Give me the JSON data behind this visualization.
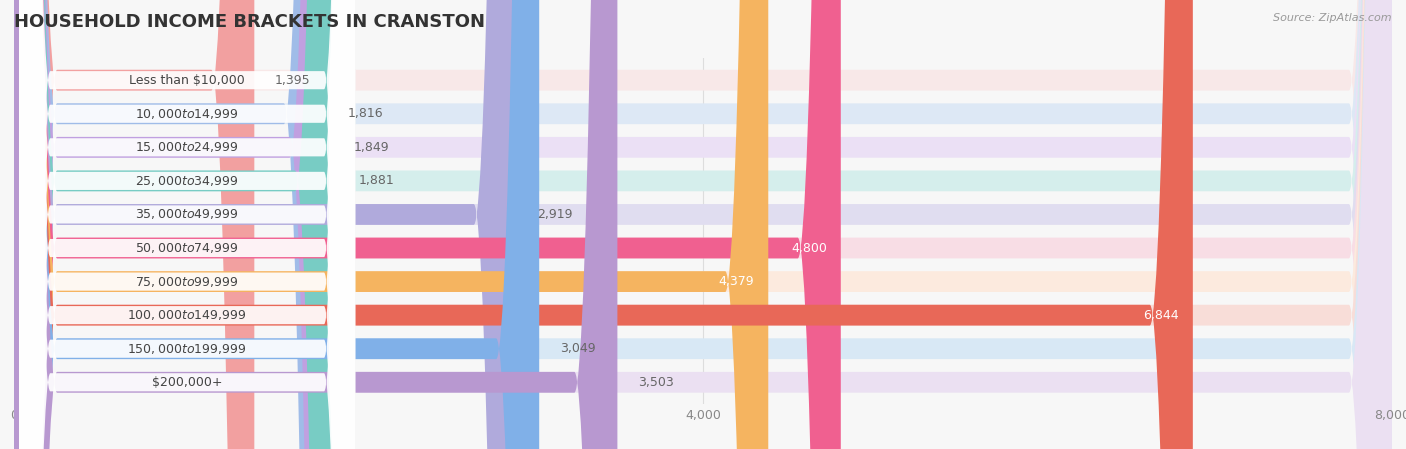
{
  "title": "HOUSEHOLD INCOME BRACKETS IN CRANSTON",
  "source": "Source: ZipAtlas.com",
  "categories": [
    "Less than $10,000",
    "$10,000 to $14,999",
    "$15,000 to $24,999",
    "$25,000 to $34,999",
    "$35,000 to $49,999",
    "$50,000 to $74,999",
    "$75,000 to $99,999",
    "$100,000 to $149,999",
    "$150,000 to $199,999",
    "$200,000+"
  ],
  "values": [
    1395,
    1816,
    1849,
    1881,
    2919,
    4800,
    4379,
    6844,
    3049,
    3503
  ],
  "bar_colors": [
    "#f2a0a0",
    "#a0bce8",
    "#c0a0e0",
    "#78ccc4",
    "#b0aadc",
    "#f06090",
    "#f5b460",
    "#e86858",
    "#80b0e8",
    "#b898d0"
  ],
  "bg_colors": [
    "#f8e8e8",
    "#dde8f5",
    "#ebe0f5",
    "#d5eeec",
    "#e0ddf0",
    "#f8dde5",
    "#fceade",
    "#f8ddd8",
    "#d8e8f5",
    "#ebe0f2"
  ],
  "xmax": 8000,
  "xticks": [
    0,
    4000,
    8000
  ],
  "value_label_color_dark": "#666666",
  "value_label_color_light": "#ffffff",
  "background_color": "#f7f7f7",
  "title_color": "#333333",
  "source_color": "#999999",
  "label_white_bg": "#ffffff",
  "grid_color": "#dddddd",
  "value_inside_threshold": 4000
}
